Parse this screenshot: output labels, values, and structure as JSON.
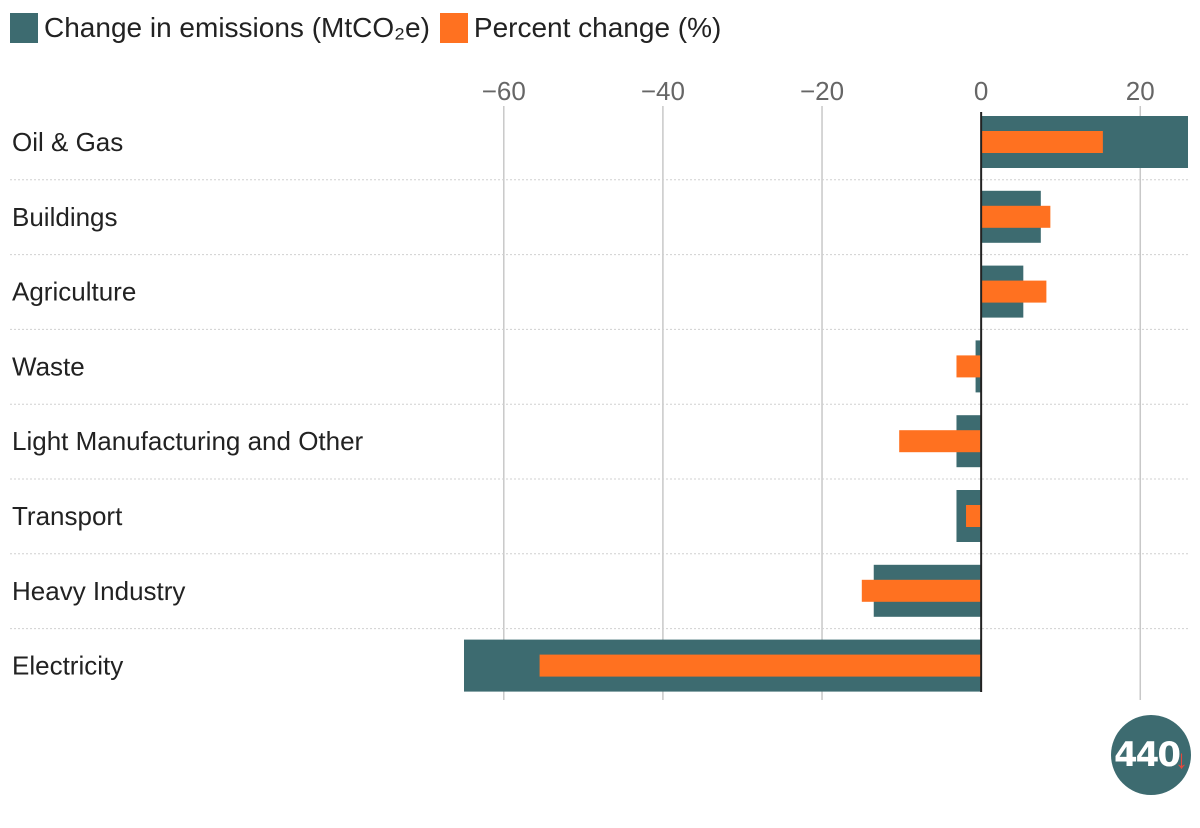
{
  "colors": {
    "emissions": "#3d6b70",
    "percent": "#ff7120",
    "grid": "#c8c8c8",
    "zero_line": "#222222",
    "logo_bg": "#3d6b70",
    "logo_accent": "#e8473c"
  },
  "legend": {
    "emissions_label": "Change in emissions (MtCO₂e)",
    "percent_label": "Percent change (%)"
  },
  "logo": {
    "text": "440",
    "icon": "down-arrow-icon"
  },
  "chart_data": {
    "type": "bar",
    "orientation": "horizontal",
    "categories": [
      "Oil & Gas",
      "Buildings",
      "Agriculture",
      "Waste",
      "Light Manufacturing and Other",
      "Transport",
      "Heavy Industry",
      "Electricity"
    ],
    "series": [
      {
        "name": "Change in emissions (MtCO₂e)",
        "values": [
          26,
          7.5,
          5.3,
          -0.7,
          -3.1,
          -3.1,
          -13.5,
          -65
        ]
      },
      {
        "name": "Percent change (%)",
        "values": [
          15.3,
          8.7,
          8.2,
          -3.1,
          -10.3,
          -1.9,
          -15,
          -55.5
        ]
      }
    ],
    "xlim": [
      -65,
      26
    ],
    "x_ticks": [
      -60,
      -40,
      -20,
      0,
      20
    ],
    "x_tick_labels": [
      "−60",
      "−40",
      "−20",
      "0",
      "20"
    ],
    "grid": true,
    "legend_position": "top-left",
    "xaxis_position": "top"
  }
}
